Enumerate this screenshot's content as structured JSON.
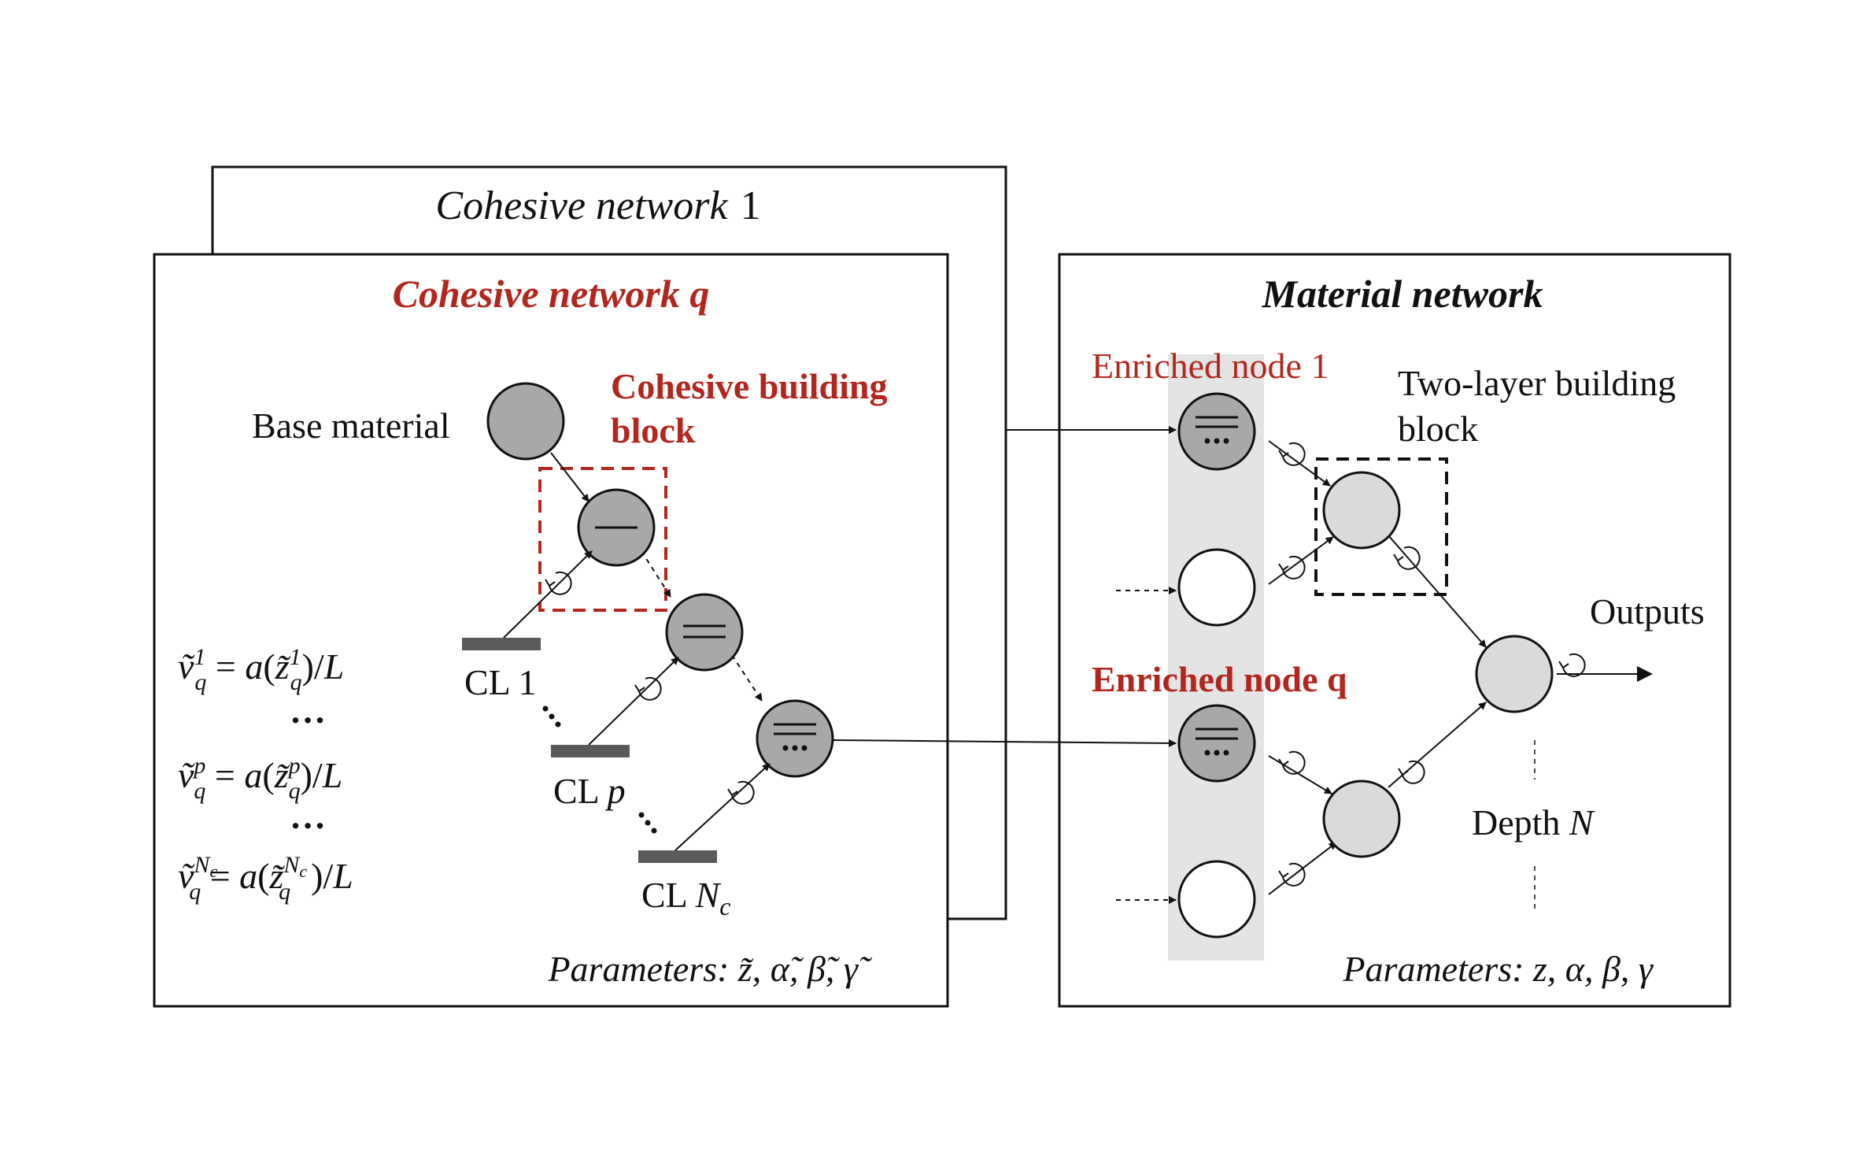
{
  "cohesive_network_back": {
    "title_italic": "Cohesive network",
    "title_number": "1"
  },
  "cohesive_network_front": {
    "title": "Cohesive network q",
    "base_material_label": "Base material",
    "building_block_label_line1": "Cohesive building",
    "building_block_label_line2": "block",
    "cohesive_layers": [
      {
        "label": "CL 1"
      },
      {
        "label": "CL p"
      },
      {
        "label": "CL N_c"
      }
    ],
    "equations": [
      "ṽ_q^1 = a(z̃_q^1)/L",
      "…",
      "ṽ_q^p = a(z̃_q^p)/L",
      "…",
      "ṽ_q^{N_c} = a(z̃_q^{N_c})/L"
    ],
    "parameters": "Parameters: z̃, α̃, β̃, γ̃"
  },
  "material_network": {
    "title": "Material network",
    "enriched_node_1": "Enriched node 1",
    "enriched_node_q": "Enriched node q",
    "two_layer_label_line1": "Two-layer building",
    "two_layer_label_line2": "block",
    "outputs_label": "Outputs",
    "depth_label": "Depth N",
    "parameters": "Parameters: z, α, β, γ"
  },
  "colors": {
    "accent_red": "#b3261e",
    "node_dark": "#a9a7a8",
    "node_light": "#dadada",
    "highlight_band": "#e4e4e4"
  },
  "icons": {
    "rotation": "clockwise-rotation-icon",
    "arrowhead": "arrow-icon"
  }
}
